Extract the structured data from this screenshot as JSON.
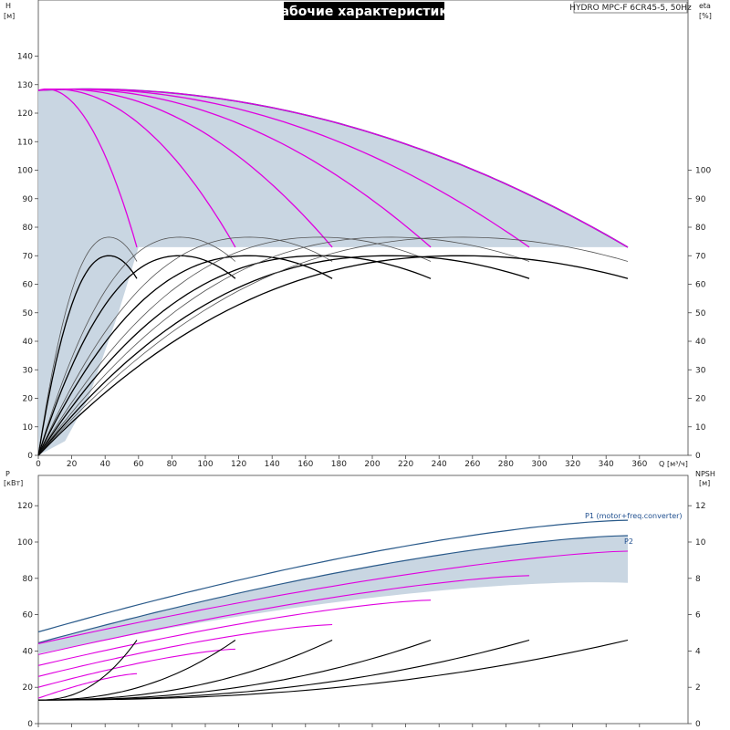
{
  "title": "Рабочие характеристики",
  "model": "HYDRO MPC-F 6CR45-5, 50Hz",
  "colors": {
    "band": "#c9d6e2",
    "envelope": "#2a5a8a",
    "speed_curve": "#e000e0",
    "speed_curve_light": "#f07af0",
    "eta_curve": "#000000",
    "grid_frame": "#444444"
  },
  "chart_data": [
    {
      "type": "line",
      "name_axis_left": "H",
      "unit_left": "[м]",
      "name_axis_right": "eta",
      "unit_right": "[%]",
      "xlabel": "Q",
      "xunit": "[м³/ч]",
      "xlim": [
        0,
        370
      ],
      "ylim": [
        0,
        150
      ],
      "xticks": [
        0,
        20,
        40,
        60,
        80,
        100,
        120,
        140,
        160,
        180,
        200,
        220,
        240,
        260,
        280,
        300,
        320,
        340,
        360
      ],
      "yticks_left": [
        0,
        10,
        20,
        30,
        40,
        50,
        60,
        70,
        80,
        90,
        100,
        110,
        120,
        130,
        140
      ],
      "yticks_right": [
        0,
        10,
        20,
        30,
        40,
        50,
        60,
        70,
        80,
        90,
        100
      ],
      "grid": false,
      "pump_count_curves": [
        {
          "pumps": 1,
          "qmax": 59
        },
        {
          "pumps": 2,
          "qmax": 118
        },
        {
          "pumps": 3,
          "qmax": 176
        },
        {
          "pumps": 4,
          "qmax": 235
        },
        {
          "pumps": 5,
          "qmax": 294
        },
        {
          "pumps": 6,
          "qmax": 353
        }
      ],
      "head": {
        "h_shutoff": 128,
        "h_peak": 131,
        "h_end": 73
      },
      "eta": {
        "peak_thin": 76.5,
        "peak_thick": 70,
        "end_thin": 68,
        "end_thick": 62
      }
    },
    {
      "type": "line",
      "name_axis_left": "P",
      "unit_left": "[кВт]",
      "name_axis_right": "NPSH",
      "unit_right": "[м]",
      "xlim": [
        0,
        370
      ],
      "ylim": [
        0,
        130
      ],
      "yticks_left": [
        0,
        20,
        40,
        60,
        80,
        100,
        120
      ],
      "yticks_right": [
        0,
        2,
        4,
        6,
        8,
        10,
        12
      ],
      "series": [
        {
          "name": "P1 (motor+freq.converter)",
          "start": 50.5,
          "end": 112
        },
        {
          "name": "P2",
          "start": 44.5,
          "end": 103.5
        }
      ],
      "npsh": {
        "base": 1.3,
        "end": 4.6
      }
    }
  ]
}
